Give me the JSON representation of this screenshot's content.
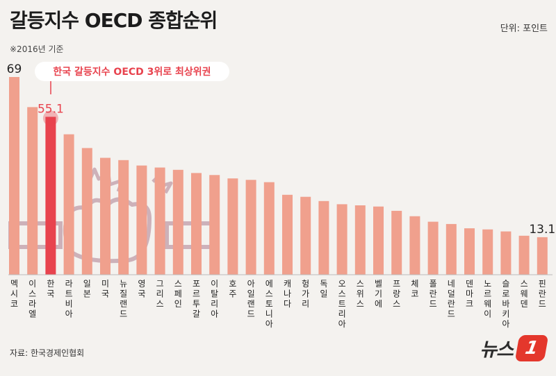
{
  "header": {
    "title": "갈등지수 OECD 종합순위",
    "subtitle": "※2016년 기준",
    "unit": "단위: 포인트"
  },
  "footer": {
    "source": "자료: 한국경제인협회",
    "logo_text": "뉴스",
    "logo_badge": "1"
  },
  "callout": {
    "text": "한국 갈등지수 OECD 3위로 최상위권"
  },
  "colors": {
    "bar": "#f0a08d",
    "highlight": "#e8434e",
    "highlight_label": "#e8434e",
    "background": "#f4f2ef"
  },
  "chart_data": {
    "type": "bar",
    "categories": [
      "멕시코",
      "이스라엘",
      "한국",
      "라트비아",
      "일본",
      "미국",
      "뉴질랜드",
      "영국",
      "그리스",
      "스페인",
      "포르투갈",
      "이탈리아",
      "호주",
      "아일랜드",
      "에스토니아",
      "캐나다",
      "헝가리",
      "독일",
      "오스트리아",
      "스위스",
      "벨기에",
      "프랑스",
      "체코",
      "폴란드",
      "네덜란드",
      "덴마크",
      "노르웨이",
      "슬로바키아",
      "스웨덴",
      "핀란드"
    ],
    "values": [
      69,
      58.5,
      55.1,
      49,
      44.2,
      40.8,
      40,
      38.1,
      37.4,
      36.6,
      35.5,
      34.8,
      33.6,
      33.1,
      32.3,
      27.9,
      27.2,
      25.7,
      24.6,
      24.2,
      23.8,
      22.3,
      20.4,
      18.5,
      17.7,
      16.2,
      15.8,
      15.1,
      13.6,
      13.1
    ],
    "highlight_index": 2,
    "data_labels": [
      {
        "index": 0,
        "text": "69"
      },
      {
        "index": 2,
        "text": "55.1"
      },
      {
        "index": 29,
        "text": "13.1"
      }
    ],
    "ylim": [
      0,
      72
    ],
    "title": "갈등지수 OECD 종합순위",
    "xlabel": "",
    "ylabel": "",
    "grid": false
  }
}
